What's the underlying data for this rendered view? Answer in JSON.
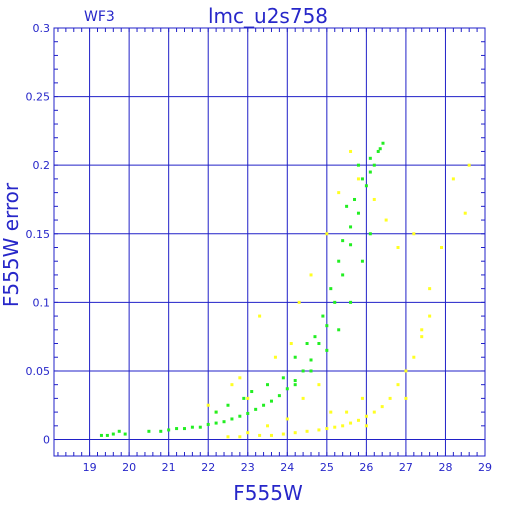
{
  "chart_data": {
    "type": "scatter",
    "title": "lmc_u2s758",
    "subtitle": "WF3",
    "xlabel": "F555W",
    "ylabel": "F555W error",
    "xlim": [
      18.1,
      29.0
    ],
    "ylim": [
      -0.012,
      0.3
    ],
    "grid": true,
    "x_ticks": [
      19,
      20,
      21,
      22,
      23,
      24,
      25,
      26,
      27,
      28,
      29
    ],
    "y_ticks": [
      0,
      0.05,
      0.1,
      0.15,
      0.2,
      0.25,
      0.3
    ],
    "y_tick_labels": [
      "0",
      "0.05",
      "0.1",
      "0.15",
      "0.2",
      "0.25",
      "0.3"
    ],
    "colors": {
      "axes": "#2727c9",
      "grid": "#2020c8",
      "series_green": "#22ee22",
      "series_yellow": "#ffff22"
    },
    "series": [
      {
        "color": "green",
        "points": [
          [
            19.3,
            0.003
          ],
          [
            19.45,
            0.003
          ],
          [
            19.6,
            0.004
          ],
          [
            19.75,
            0.006
          ],
          [
            19.9,
            0.004
          ],
          [
            20.5,
            0.006
          ],
          [
            20.8,
            0.006
          ],
          [
            21.0,
            0.007
          ],
          [
            21.2,
            0.008
          ],
          [
            21.4,
            0.008
          ],
          [
            21.6,
            0.009
          ],
          [
            21.8,
            0.009
          ],
          [
            22.0,
            0.011
          ],
          [
            22.2,
            0.012
          ],
          [
            22.4,
            0.013
          ],
          [
            22.6,
            0.015
          ],
          [
            22.8,
            0.017
          ],
          [
            23.0,
            0.019
          ],
          [
            23.2,
            0.022
          ],
          [
            23.4,
            0.025
          ],
          [
            23.6,
            0.028
          ],
          [
            23.8,
            0.032
          ],
          [
            24.0,
            0.037
          ],
          [
            24.2,
            0.043
          ],
          [
            24.4,
            0.05
          ],
          [
            24.6,
            0.058
          ],
          [
            24.8,
            0.07
          ],
          [
            25.0,
            0.083
          ],
          [
            25.2,
            0.1
          ],
          [
            25.4,
            0.12
          ],
          [
            25.6,
            0.142
          ],
          [
            25.8,
            0.165
          ],
          [
            26.0,
            0.185
          ],
          [
            26.2,
            0.2
          ],
          [
            26.35,
            0.212
          ],
          [
            26.42,
            0.216
          ],
          [
            22.2,
            0.02
          ],
          [
            22.5,
            0.025
          ],
          [
            22.9,
            0.03
          ],
          [
            23.1,
            0.035
          ],
          [
            23.5,
            0.04
          ],
          [
            23.9,
            0.045
          ],
          [
            24.2,
            0.06
          ],
          [
            24.5,
            0.07
          ],
          [
            24.7,
            0.075
          ],
          [
            24.9,
            0.09
          ],
          [
            25.1,
            0.11
          ],
          [
            25.3,
            0.13
          ],
          [
            25.4,
            0.145
          ],
          [
            25.6,
            0.155
          ],
          [
            25.7,
            0.175
          ],
          [
            25.9,
            0.19
          ],
          [
            26.1,
            0.195
          ],
          [
            25.5,
            0.17
          ],
          [
            25.8,
            0.2
          ],
          [
            26.1,
            0.205
          ],
          [
            26.3,
            0.21
          ],
          [
            24.2,
            0.04
          ],
          [
            24.6,
            0.05
          ],
          [
            25.0,
            0.065
          ],
          [
            25.3,
            0.08
          ],
          [
            25.6,
            0.1
          ],
          [
            25.9,
            0.13
          ],
          [
            26.1,
            0.15
          ]
        ]
      },
      {
        "color": "yellow",
        "points": [
          [
            22.5,
            0.002
          ],
          [
            22.8,
            0.002
          ],
          [
            23.3,
            0.003
          ],
          [
            23.6,
            0.003
          ],
          [
            23.9,
            0.004
          ],
          [
            24.2,
            0.005
          ],
          [
            24.5,
            0.006
          ],
          [
            24.8,
            0.007
          ],
          [
            25.0,
            0.008
          ],
          [
            25.2,
            0.009
          ],
          [
            25.4,
            0.01
          ],
          [
            25.6,
            0.012
          ],
          [
            25.8,
            0.014
          ],
          [
            26.0,
            0.017
          ],
          [
            26.2,
            0.02
          ],
          [
            26.4,
            0.024
          ],
          [
            26.6,
            0.03
          ],
          [
            26.8,
            0.04
          ],
          [
            27.0,
            0.05
          ],
          [
            27.2,
            0.06
          ],
          [
            27.4,
            0.075
          ],
          [
            27.6,
            0.09
          ],
          [
            22.0,
            0.025
          ],
          [
            22.2,
            0.02
          ],
          [
            22.6,
            0.04
          ],
          [
            22.8,
            0.045
          ],
          [
            23.0,
            0.03
          ],
          [
            23.3,
            0.09
          ],
          [
            23.7,
            0.06
          ],
          [
            24.1,
            0.07
          ],
          [
            24.3,
            0.1
          ],
          [
            24.6,
            0.12
          ],
          [
            24.8,
            0.04
          ],
          [
            25.0,
            0.15
          ],
          [
            25.3,
            0.18
          ],
          [
            25.6,
            0.21
          ],
          [
            25.8,
            0.19
          ],
          [
            26.2,
            0.175
          ],
          [
            26.5,
            0.16
          ],
          [
            26.8,
            0.14
          ],
          [
            27.2,
            0.15
          ],
          [
            27.6,
            0.11
          ],
          [
            27.9,
            0.14
          ],
          [
            28.2,
            0.19
          ],
          [
            28.5,
            0.165
          ],
          [
            28.6,
            0.2
          ],
          [
            27.4,
            0.08
          ],
          [
            27.0,
            0.03
          ],
          [
            26.0,
            0.01
          ],
          [
            25.5,
            0.02
          ],
          [
            24.0,
            0.015
          ],
          [
            23.5,
            0.01
          ],
          [
            23.0,
            0.005
          ],
          [
            24.4,
            0.03
          ],
          [
            25.1,
            0.02
          ],
          [
            25.9,
            0.03
          ]
        ]
      }
    ]
  }
}
